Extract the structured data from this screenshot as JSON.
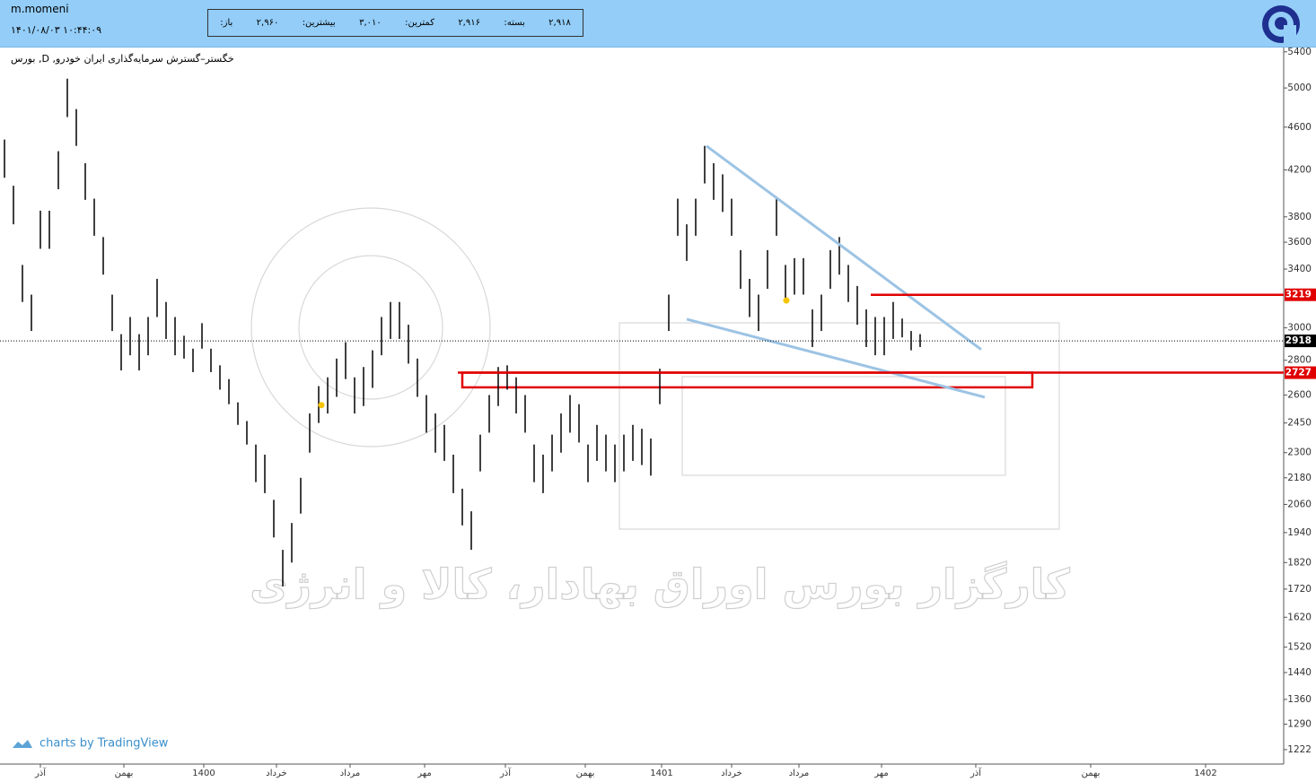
{
  "header": {
    "user": "m.momeni",
    "datetime": "۱۴۰۱/۰۸/۰۳ ۱۰:۴۴:۰۹",
    "stats": [
      {
        "label": "باز:",
        "value": "۲,۹۶۰"
      },
      {
        "label": "بیشترین:",
        "value": "۳,۰۱۰"
      },
      {
        "label": "کمترین:",
        "value": "۲,۹۱۶"
      },
      {
        "label": "بسته:",
        "value": "۲,۹۱۸"
      }
    ]
  },
  "chart_data": {
    "type": "range_bar",
    "title": "بورس ,D ,خگستر–گسترش سرمایه‌گذاری ایران خودرو",
    "watermark": "کارگزار بورس اوراق بهادار، کالا و انرژی",
    "credit": "charts by TradingView",
    "color": "#000000",
    "log_scale": true,
    "xlim": [
      0,
      143
    ],
    "ylim": [
      1185,
      5460
    ],
    "yticks": [
      5400,
      5000,
      4600,
      4200,
      3800,
      3600,
      3400,
      3000,
      2800,
      2600,
      2450,
      2300,
      2180,
      2060,
      1940,
      1820,
      1720,
      1620,
      1520,
      1440,
      1360,
      1290,
      1222
    ],
    "xticks": [
      {
        "value": 4.5,
        "label": "آذر"
      },
      {
        "value": 13.8,
        "label": "بهمن"
      },
      {
        "value": 22.7,
        "label": "1400"
      },
      {
        "value": 30.8,
        "label": "خرداد"
      },
      {
        "value": 39,
        "label": "مرداد"
      },
      {
        "value": 47.3,
        "label": "مهر"
      },
      {
        "value": 56.3,
        "label": "آذر"
      },
      {
        "value": 65.2,
        "label": "بهمن"
      },
      {
        "value": 73.7,
        "label": "1401"
      },
      {
        "value": 81.5,
        "label": "خرداد"
      },
      {
        "value": 89,
        "label": "مرداد"
      },
      {
        "value": 98.2,
        "label": "مهر"
      },
      {
        "value": 108.7,
        "label": "آذر"
      },
      {
        "value": 121.5,
        "label": "بهمن"
      },
      {
        "value": 134.3,
        "label": "1402"
      }
    ],
    "x": [
      0.5,
      1.5,
      2.5,
      3.5,
      4.5,
      5.5,
      6.5,
      7.5,
      8.5,
      9.5,
      10.5,
      11.5,
      12.5,
      13.5,
      14.5,
      15.5,
      16.5,
      17.5,
      18.5,
      19.5,
      20.5,
      21.5,
      22.5,
      23.5,
      24.5,
      25.5,
      26.5,
      27.5,
      28.5,
      29.5,
      30.5,
      31.5,
      32.5,
      33.5,
      34.5,
      35.5,
      36.5,
      37.5,
      38.5,
      39.5,
      40.5,
      41.5,
      42.5,
      43.5,
      44.5,
      45.5,
      46.5,
      47.5,
      48.5,
      49.5,
      50.5,
      51.5,
      52.5,
      53.5,
      54.5,
      55.5,
      56.5,
      57.5,
      58.5,
      59.5,
      60.5,
      61.5,
      62.5,
      63.5,
      64.5,
      65.5,
      66.5,
      67.5,
      68.5,
      69.5,
      70.5,
      71.5,
      72.5,
      73.5,
      74.5,
      75.5,
      76.5,
      77.5,
      78.5,
      79.5,
      80.5,
      81.5,
      82.5,
      83.5,
      84.5,
      85.5,
      86.5,
      87.5,
      88.5,
      89.5,
      90.5,
      91.5,
      92.5,
      93.5,
      94.5,
      95.5,
      96.5,
      97.5,
      98.5,
      99.5,
      100.5,
      101.5,
      102.5
    ],
    "high": [
      4480,
      4060,
      3430,
      3220,
      3850,
      3850,
      4370,
      5100,
      4780,
      4260,
      3950,
      3640,
      3220,
      2960,
      3070,
      2960,
      3070,
      3330,
      3170,
      3070,
      2950,
      2870,
      3030,
      2870,
      2770,
      2690,
      2560,
      2460,
      2340,
      2290,
      2080,
      1870,
      1980,
      2180,
      2500,
      2650,
      2700,
      2810,
      2910,
      2700,
      2760,
      2860,
      3070,
      3170,
      3170,
      3020,
      2810,
      2600,
      2500,
      2440,
      2290,
      2130,
      2030,
      2390,
      2600,
      2760,
      2770,
      2700,
      2600,
      2340,
      2290,
      2390,
      2500,
      2600,
      2550,
      2340,
      2440,
      2390,
      2340,
      2390,
      2440,
      2420,
      2370,
      2750,
      3220,
      3950,
      3740,
      3950,
      4420,
      4260,
      4160,
      3950,
      3540,
      3330,
      3220,
      3540,
      3950,
      3430,
      3480,
      3480,
      3120,
      3220,
      3540,
      3640,
      3430,
      3280,
      3120,
      3070,
      3070,
      3170,
      3060,
      2980,
      2960
    ],
    "low": [
      4130,
      3740,
      3170,
      2980,
      3550,
      3550,
      4030,
      4700,
      4420,
      3940,
      3650,
      3360,
      2980,
      2740,
      2830,
      2740,
      2830,
      3070,
      2930,
      2830,
      2810,
      2730,
      2870,
      2730,
      2630,
      2550,
      2440,
      2340,
      2160,
      2110,
      1920,
      1730,
      1820,
      2020,
      2300,
      2450,
      2500,
      2590,
      2690,
      2500,
      2540,
      2640,
      2830,
      2930,
      2930,
      2780,
      2590,
      2400,
      2300,
      2260,
      2110,
      1970,
      1870,
      2210,
      2400,
      2540,
      2630,
      2500,
      2400,
      2160,
      2110,
      2210,
      2300,
      2400,
      2350,
      2160,
      2260,
      2210,
      2160,
      2210,
      2260,
      2240,
      2190,
      2550,
      2980,
      3650,
      3460,
      3650,
      4080,
      3940,
      3840,
      3650,
      3260,
      3070,
      2980,
      3260,
      3650,
      3170,
      3220,
      3220,
      2880,
      2980,
      3260,
      3360,
      3170,
      3020,
      2880,
      2830,
      2830,
      2930,
      2940,
      2860,
      2880
    ],
    "levels": [
      {
        "value": 3219,
        "color": "#e00000",
        "from": 97
      },
      {
        "value": 2918,
        "color": "#000000",
        "from": 0
      },
      {
        "value": 2727,
        "color": "#e00000",
        "from": 51
      }
    ],
    "zone": {
      "top": 2727,
      "bottom": 2643,
      "x": [
        51.5,
        115
      ],
      "color": "#e00000"
    },
    "trendlines": [
      {
        "x": [
          78.7,
          109.3
        ],
        "y": [
          4419,
          2865
        ],
        "color": "#9cc3e4"
      },
      {
        "x": [
          76.5,
          109.7
        ],
        "y": [
          3056,
          2588
        ],
        "color": "#9cc3e4"
      }
    ],
    "markers": [
      {
        "x": 35.8,
        "y": 2545,
        "color": "#f5c400"
      },
      {
        "x": 87.6,
        "y": 3180,
        "color": "#f5c400"
      }
    ]
  }
}
